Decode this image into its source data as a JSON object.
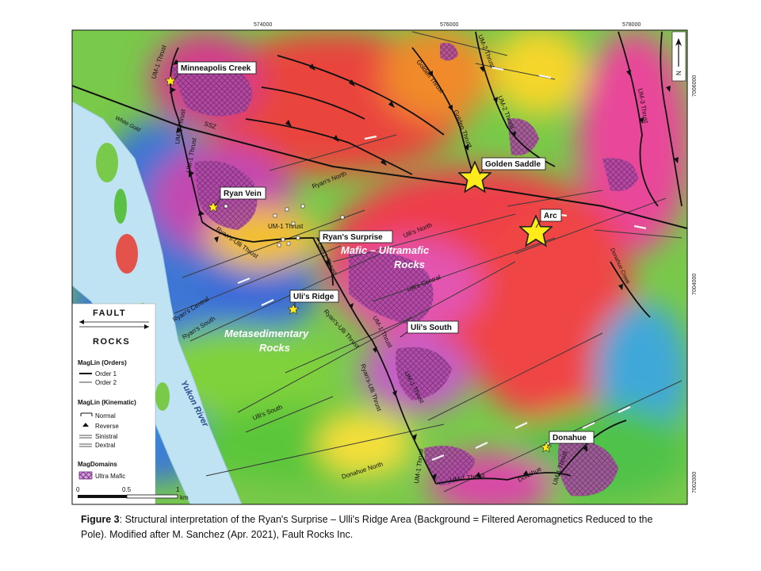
{
  "map": {
    "coords_top": [
      "574000",
      "576000",
      "578000"
    ],
    "coords_right": [
      "7006000",
      "7004000",
      "7002000"
    ],
    "north_label": "N",
    "callouts": {
      "minneapolis": "Minneapolis Creek",
      "ryan_vein": "Ryan Vein",
      "ryans_surprise": "Ryan's Surprise",
      "ulis_ridge": "Uli's Ridge",
      "ulis_south": "Uli's South",
      "golden_saddle": "Golden Saddle",
      "arc": "Arc",
      "donahue": "Donahue"
    },
    "regions": {
      "mafic_line1": "Mafic – Ultramafic",
      "mafic_line2": "Rocks",
      "meta_line1": "Metasedimentary",
      "meta_line2": "Rocks"
    },
    "river": "Yukon River",
    "faults": {
      "um1_a": "UM-1 Thrust",
      "um1_b": "UM-1 Thrust",
      "um1_c": "UM-1 Thrust",
      "um1_d": "UM-1 Thrust",
      "um1_e": "UM-1 Thrust",
      "um1_f": "UM-1 Thrust",
      "um1_g": "UM-1 Thrust",
      "um1_h": "UM-1 Thrust",
      "um1_i": "UM-1 Thrust",
      "um2_a": "UM-2 Thrust",
      "um2_b": "UM-2 Thrust",
      "um3": "UM-3 Thrust",
      "golden_a": "Golden Thrust",
      "golden_b": "Golden Thrust",
      "ssz": "SSZ",
      "white_gold": "White Gold",
      "ryans_north": "Ryan's North",
      "ryans_central": "Ryan's Central",
      "ryans_south": "Ryan's South",
      "ryans_ulli_a": "Ryan's-Ulli Thrust",
      "ryans_ulli_b": "Ryan's-Ulli Thrust",
      "ryans_ulli_c": "Ryan's-Ulli Thrust",
      "ullis_north": "Ulli's North",
      "ullis_central": "Ulli's Central",
      "ullis_south": "Ulli's South",
      "donahue_north": "Donahue North",
      "donahue_creek": "Donahue Creek",
      "donahue_fault": "Donahue"
    }
  },
  "legend": {
    "logo_top": "FAULT",
    "logo_bottom": "ROCKS",
    "maglin_orders_title": "MagLin (Orders)",
    "order1": "Order 1",
    "order2": "Order 2",
    "maglin_kinematic_title": "MagLin (Kinematic)",
    "normal": "Normal",
    "reverse": "Reverse",
    "sinistral": "Sinistral",
    "dextral": "Dextral",
    "magdomains_title": "MagDomains",
    "ultra_mafic": "Ultra Mafic",
    "scale_0": "0",
    "scale_05": "0.5",
    "scale_1": "1",
    "scale_unit": "km"
  },
  "caption": {
    "label": "Figure 3",
    "text": ": Structural interpretation of the Ryan's Surprise – Ulli's Ridge Area (Background = Filtered Aeromagnetics Reduced to the Pole). Modified after M. Sanchez (Apr. 2021), Fault Rocks Inc."
  },
  "colors": {
    "mag_high": "#e8425e",
    "mag_mid": "#7ccd3a",
    "mag_low": "#3a7ad8",
    "river": "#bfe3f2",
    "ultramafic_hatch": "#7a2a8c",
    "star": "#ffeb1a"
  }
}
